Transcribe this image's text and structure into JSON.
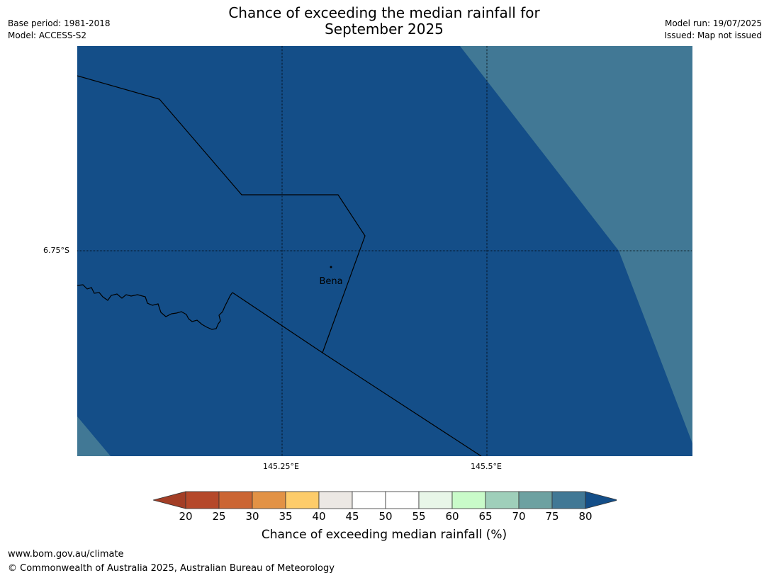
{
  "header": {
    "base_period": "Base period: 1981-2018",
    "model": "Model: ACCESS-S2",
    "title_line1": "Chance of exceeding the median rainfall for",
    "title_line2": "September 2025",
    "model_run": "Model run: 19/07/2025",
    "issued": "Issued: Map not issued"
  },
  "map": {
    "latitude_label": "6.75°S",
    "longitude_labels": [
      "145.25°E",
      "145.5°E"
    ],
    "place_label": "Bena",
    "colors": {
      "ocean_band": "#144e88",
      "land_band": "#417895",
      "boundary": "#000000"
    }
  },
  "colorbar": {
    "ticks": [
      "20",
      "25",
      "30",
      "35",
      "40",
      "45",
      "50",
      "55",
      "60",
      "65",
      "70",
      "75",
      "80"
    ],
    "colors": [
      "#a33e26",
      "#b5482a",
      "#cb6533",
      "#e29245",
      "#fdcc6a",
      "#ece8e4",
      "#ffffff",
      "#ffffff",
      "#e8f6e8",
      "#c9fbc9",
      "#9fcfba",
      "#6da1a1",
      "#417895",
      "#144e88"
    ],
    "title": "Chance of exceeding median rainfall (%)"
  },
  "footer": {
    "url": "www.bom.gov.au/climate",
    "copyright": "© Commonwealth of Australia 2025, Australian Bureau of Meteorology"
  }
}
